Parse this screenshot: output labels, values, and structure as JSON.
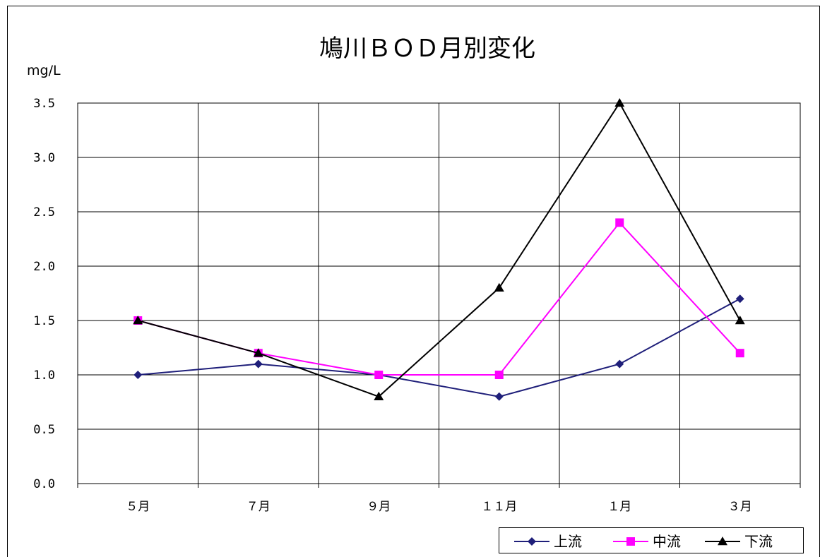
{
  "chart_data": {
    "type": "line",
    "title": "鳩川ＢＯＤ月別変化",
    "ylabel": "mg/L",
    "xlabel": "",
    "categories": [
      "５月",
      "７月",
      "９月",
      "１１月",
      "１月",
      "３月"
    ],
    "ylim": [
      0,
      3.5
    ],
    "yticks": [
      "0.0",
      "0.5",
      "1.0",
      "1.5",
      "2.0",
      "2.5",
      "3.0",
      "3.5"
    ],
    "grid": true,
    "legend_position": "bottom-right",
    "series": [
      {
        "name": "上流",
        "values": [
          1.0,
          1.1,
          1.0,
          0.8,
          1.1,
          1.7
        ],
        "color": "#1f1f7a",
        "marker": "diamond"
      },
      {
        "name": "中流",
        "values": [
          1.5,
          1.2,
          1.0,
          1.0,
          2.4,
          1.2
        ],
        "color": "#ff00ff",
        "marker": "square"
      },
      {
        "name": "下流",
        "values": [
          1.5,
          1.2,
          0.8,
          1.8,
          3.5,
          1.5
        ],
        "color": "#000000",
        "marker": "triangle"
      }
    ]
  }
}
